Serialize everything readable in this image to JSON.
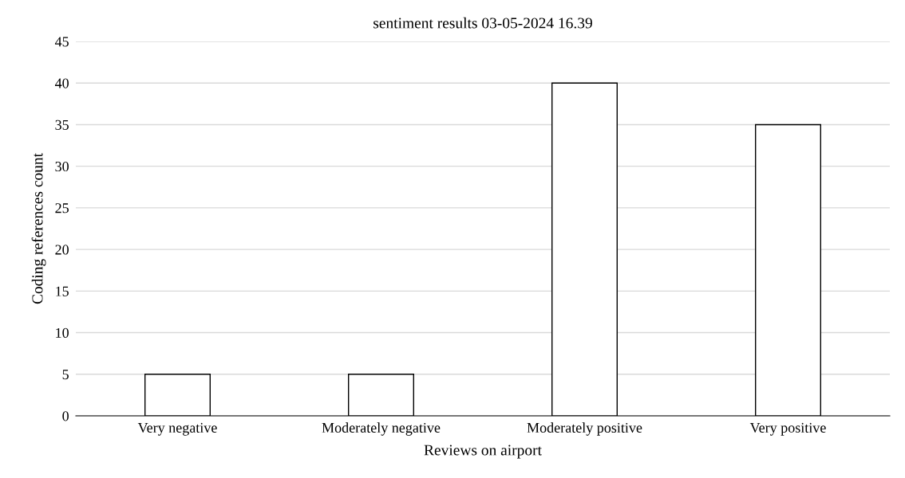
{
  "chart_data": {
    "type": "bar",
    "title": "sentiment results 03-05-2024 16.39",
    "xlabel": "Reviews on airport",
    "ylabel": "Coding references count",
    "categories": [
      "Very negative",
      "Moderately negative",
      "Moderately positive",
      "Very positive"
    ],
    "values": [
      5,
      5,
      40,
      35
    ],
    "color": "#ffffff",
    "ylim": [
      0,
      45
    ],
    "yticks": [
      0,
      5,
      10,
      15,
      20,
      25,
      30,
      35,
      40,
      45
    ],
    "grid": "y"
  }
}
